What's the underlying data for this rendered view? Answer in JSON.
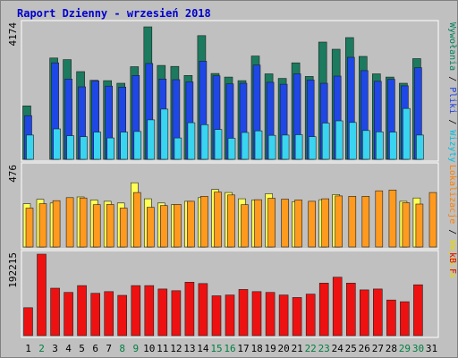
{
  "chart_data": {
    "title": "Raport Dzienny -  wrzesień 2018",
    "days": [
      "1",
      "2",
      "3",
      "4",
      "5",
      "6",
      "7",
      "8",
      "9",
      "10",
      "11",
      "12",
      "13",
      "14",
      "15",
      "16",
      "17",
      "18",
      "19",
      "20",
      "21",
      "22",
      "23",
      "24",
      "25",
      "26",
      "27",
      "28",
      "29",
      "30",
      "31"
    ],
    "weekend_days": [
      "2",
      "8",
      "9",
      "15",
      "16",
      "22",
      "23",
      "29",
      "30"
    ],
    "panels": [
      {
        "type": "bar",
        "ymax_label": "4174",
        "ymax": 4174,
        "legend": [
          {
            "text": "Wywołania",
            "color": "#00805c"
          },
          {
            "text": "Pliki",
            "color": "#2040e0"
          },
          {
            "text": "Wizyty",
            "color": "#00c0e0"
          }
        ],
        "series": [
          {
            "name": "Wywołania",
            "color": "#1c7a5e",
            "values": [
              1650,
              0,
              3130,
              3080,
              2710,
              2440,
              2430,
              2350,
              2860,
              4090,
              2900,
              2870,
              2590,
              3820,
              2650,
              2540,
              2430,
              3190,
              2640,
              2500,
              2980,
              2560,
              3620,
              3400,
              3760,
              3180,
              2640,
              2540,
              2350,
              3110,
              0
            ]
          },
          {
            "name": "Pliki",
            "color": "#1f47e5",
            "values": [
              1350,
              0,
              2980,
              2480,
              2240,
              2420,
              2260,
              2230,
              2590,
              2960,
              2480,
              2460,
              2390,
              3030,
              2580,
              2330,
              2350,
              2910,
              2380,
              2320,
              2640,
              2450,
              2350,
              2570,
              3150,
              2740,
              2410,
              2470,
              2270,
              2830,
              0
            ]
          },
          {
            "name": "Wizyty",
            "color": "#38d4f0",
            "values": [
              750,
              0,
              940,
              730,
              700,
              840,
              660,
              840,
              860,
              1220,
              1550,
              660,
              1130,
              1070,
              920,
              650,
              830,
              880,
              740,
              750,
              760,
              700,
              1120,
              1190,
              1140,
              890,
              850,
              840,
              1570,
              750,
              0
            ]
          }
        ]
      },
      {
        "type": "bar",
        "ymax_label": "476",
        "ymax": 476,
        "legend": [
          {
            "text": "Lokalizacje",
            "color": "#ff8000"
          },
          {
            "text": "Wejścia",
            "color": "#e8d800"
          }
        ],
        "series": [
          {
            "name": "Lokalizacje",
            "color": "#ff9a1e",
            "values": [
              0,
              0,
              0,
              0,
              0,
              0,
              0,
              0,
              0,
              0,
              0,
              0,
              0,
              0,
              0,
              0,
              0,
              0,
              0,
              0,
              0,
              0,
              0,
              0,
              0,
              0,
              0,
              0,
              0,
              0,
              0
            ]
          },
          {
            "name": "Wejścia",
            "color": "#ffff55",
            "values": [
              0,
              0,
              0,
              0,
              0,
              0,
              0,
              0,
              0,
              0,
              0,
              0,
              0,
              0,
              0,
              0,
              0,
              0,
              0,
              0,
              0,
              0,
              0,
              0,
              0,
              0,
              0,
              0,
              0,
              0,
              0
            ]
          }
        ],
        "pairs": [
          [
            256,
            230
          ],
          [
            282,
            256
          ],
          [
            260,
            274
          ],
          [
            0,
            292
          ],
          [
            296,
            290
          ],
          [
            278,
            250
          ],
          [
            270,
            252
          ],
          [
            260,
            230
          ],
          [
            380,
            322
          ],
          [
            285,
            235
          ],
          [
            260,
            245
          ],
          [
            250,
            252
          ],
          [
            270,
            270
          ],
          [
            292,
            300
          ],
          [
            340,
            325
          ],
          [
            322,
            308
          ],
          [
            285,
            250
          ],
          [
            278,
            280
          ],
          [
            315,
            288
          ],
          [
            0,
            283
          ],
          [
            268,
            278
          ],
          [
            0,
            270
          ],
          [
            280,
            285
          ],
          [
            310,
            302
          ],
          [
            0,
            300
          ],
          [
            0,
            300
          ],
          [
            0,
            332
          ],
          [
            0,
            337
          ],
          [
            270,
            262
          ],
          [
            290,
            254
          ],
          [
            0,
            322
          ]
        ]
      },
      {
        "type": "bar",
        "ymax_label": "192215",
        "ymax": 192215,
        "legend": [
          {
            "text": "kB F",
            "color": "#e00000"
          }
        ],
        "series": [
          {
            "name": "kB F",
            "color": "#ee1111",
            "values": [
              66000,
              192215,
              112000,
              102000,
              118000,
              100000,
              104000,
              95000,
              118000,
              118000,
              110000,
              106000,
              126000,
              123000,
              94000,
              96000,
              109000,
              104000,
              102000,
              96000,
              90000,
              98000,
              124000,
              138000,
              124000,
              108000,
              110000,
              84000,
              80000,
              120000,
              0
            ]
          }
        ]
      }
    ]
  }
}
